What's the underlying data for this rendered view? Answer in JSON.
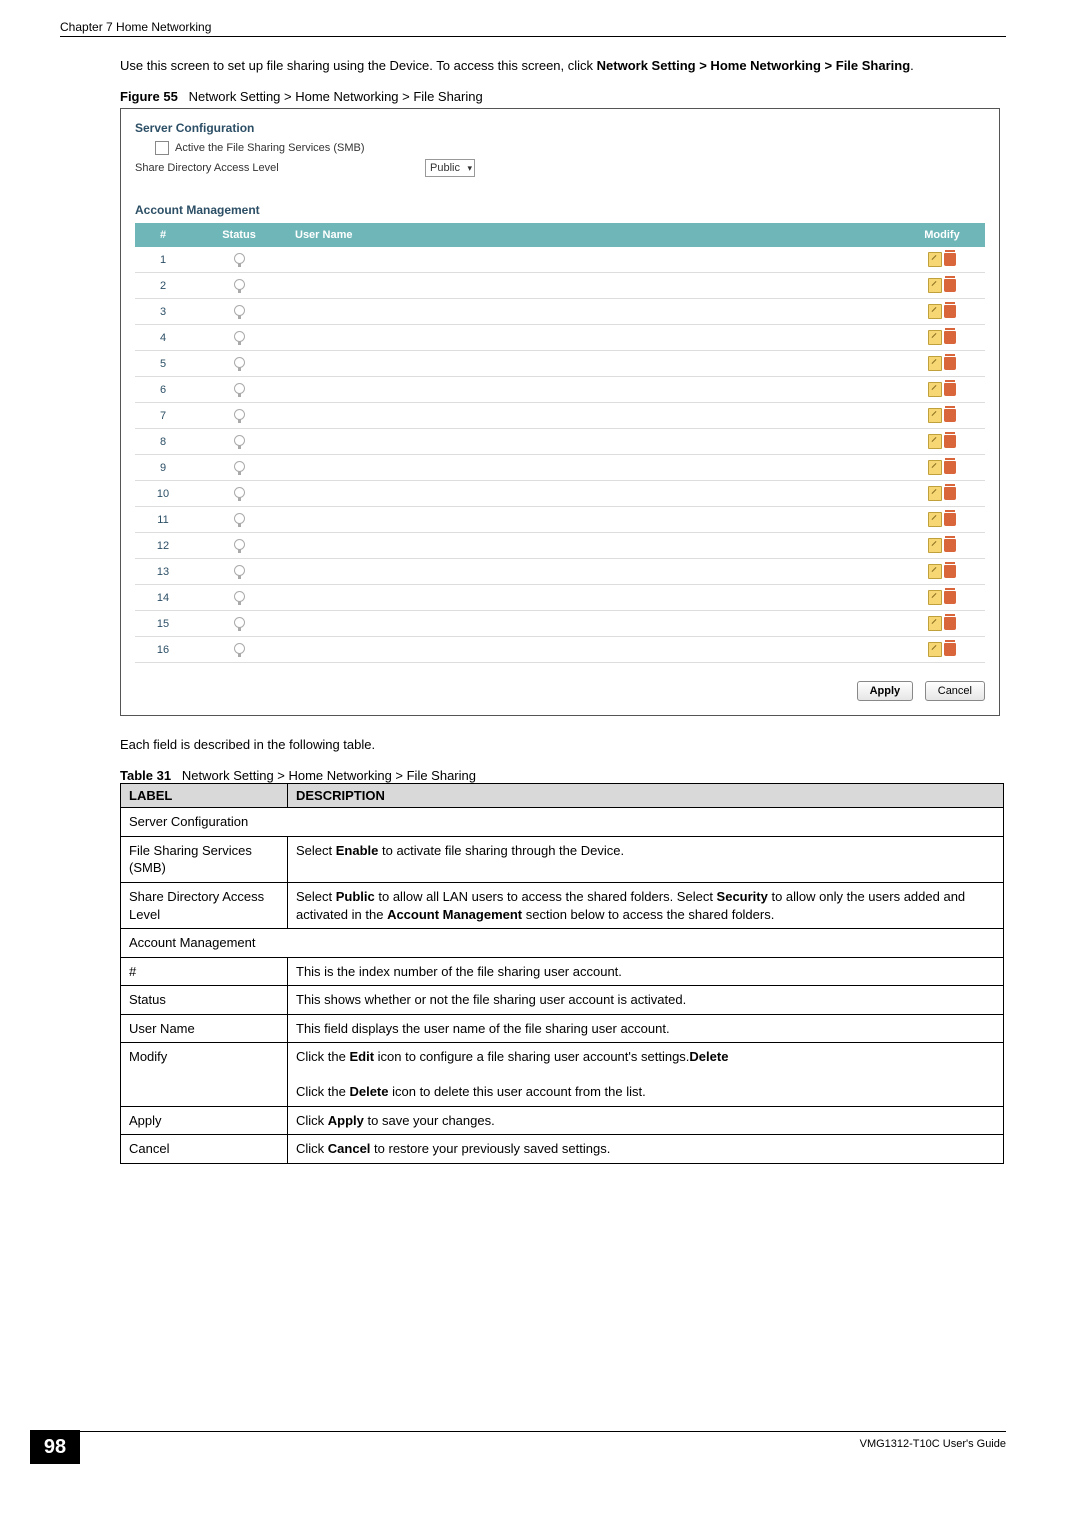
{
  "header": {
    "chapter": "Chapter 7 Home Networking"
  },
  "intro": {
    "sentence_a": "Use this screen to set up file sharing using the Device. To access this screen, click ",
    "path": "Network Setting > Home Networking > File Sharing",
    "sentence_b": "."
  },
  "figure": {
    "label": "Figure 55",
    "title": "Network Setting > Home Networking > File Sharing"
  },
  "screenshot": {
    "server_cfg_title": "Server Configuration",
    "checkbox_label": "Active the File Sharing Services (SMB)",
    "level_label": "Share Directory Access Level",
    "level_value": "Public",
    "acct_title": "Account Management",
    "cols": {
      "num": "#",
      "status": "Status",
      "user": "User Name",
      "modify": "Modify"
    },
    "rows": [
      {
        "n": "1"
      },
      {
        "n": "2"
      },
      {
        "n": "3"
      },
      {
        "n": "4"
      },
      {
        "n": "5"
      },
      {
        "n": "6"
      },
      {
        "n": "7"
      },
      {
        "n": "8"
      },
      {
        "n": "9"
      },
      {
        "n": "10"
      },
      {
        "n": "11"
      },
      {
        "n": "12"
      },
      {
        "n": "13"
      },
      {
        "n": "14"
      },
      {
        "n": "15"
      },
      {
        "n": "16"
      }
    ],
    "apply": "Apply",
    "cancel": "Cancel"
  },
  "after_fig": "Each field is described in the following table.",
  "table": {
    "label": "Table 31",
    "title": "Network Setting > Home Networking > File Sharing",
    "head_label": "LABEL",
    "head_desc": "DESCRIPTION",
    "rows": [
      {
        "type": "section",
        "label": "Server Configuration"
      },
      {
        "label": "File Sharing Services (SMB)",
        "desc_pre": "Select ",
        "b1": "Enable",
        "desc_post": " to activate file sharing through the Device."
      },
      {
        "label": "Share Directory Access Level",
        "desc_pre": "Select ",
        "b1": "Public",
        "mid1": " to allow all LAN users to access the shared folders. Select ",
        "b2": "Security",
        "mid2": " to allow only the users added and activated in the ",
        "b3": "Account Management",
        "post": " section below to access the shared folders."
      },
      {
        "type": "section",
        "label": "Account Management"
      },
      {
        "label": "#",
        "desc": "This is the index number of the file sharing user account."
      },
      {
        "label": "Status",
        "desc": "This shows whether or not the file sharing user account is activated."
      },
      {
        "label": "User Name",
        "desc": "This field displays the user name of the file sharing user account."
      },
      {
        "label": "Modify",
        "desc_pre": "Click the ",
        "b1": "Edit",
        "mid1": " icon to configure a file sharing user account's settings.",
        "br": true,
        "desc_pre2": "Click the ",
        "b2": "Delete",
        "post": " icon to delete this user account from the list."
      },
      {
        "label": "Apply",
        "desc_pre": "Click ",
        "b1": "Apply",
        "post": " to save your changes."
      },
      {
        "label": "Cancel",
        "desc_pre": "Click ",
        "b1": "Cancel",
        "post": " to restore your previously saved settings."
      }
    ]
  },
  "footer": {
    "page": "98",
    "guide": "VMG1312-T10C User's Guide"
  },
  "colors": {
    "table_header_bg": "#6fb6b8",
    "section_title": "#2c4f66",
    "edit_icon": "#f7d774",
    "delete_icon": "#d9653a",
    "desc_header_bg": "#d9d9d9"
  }
}
